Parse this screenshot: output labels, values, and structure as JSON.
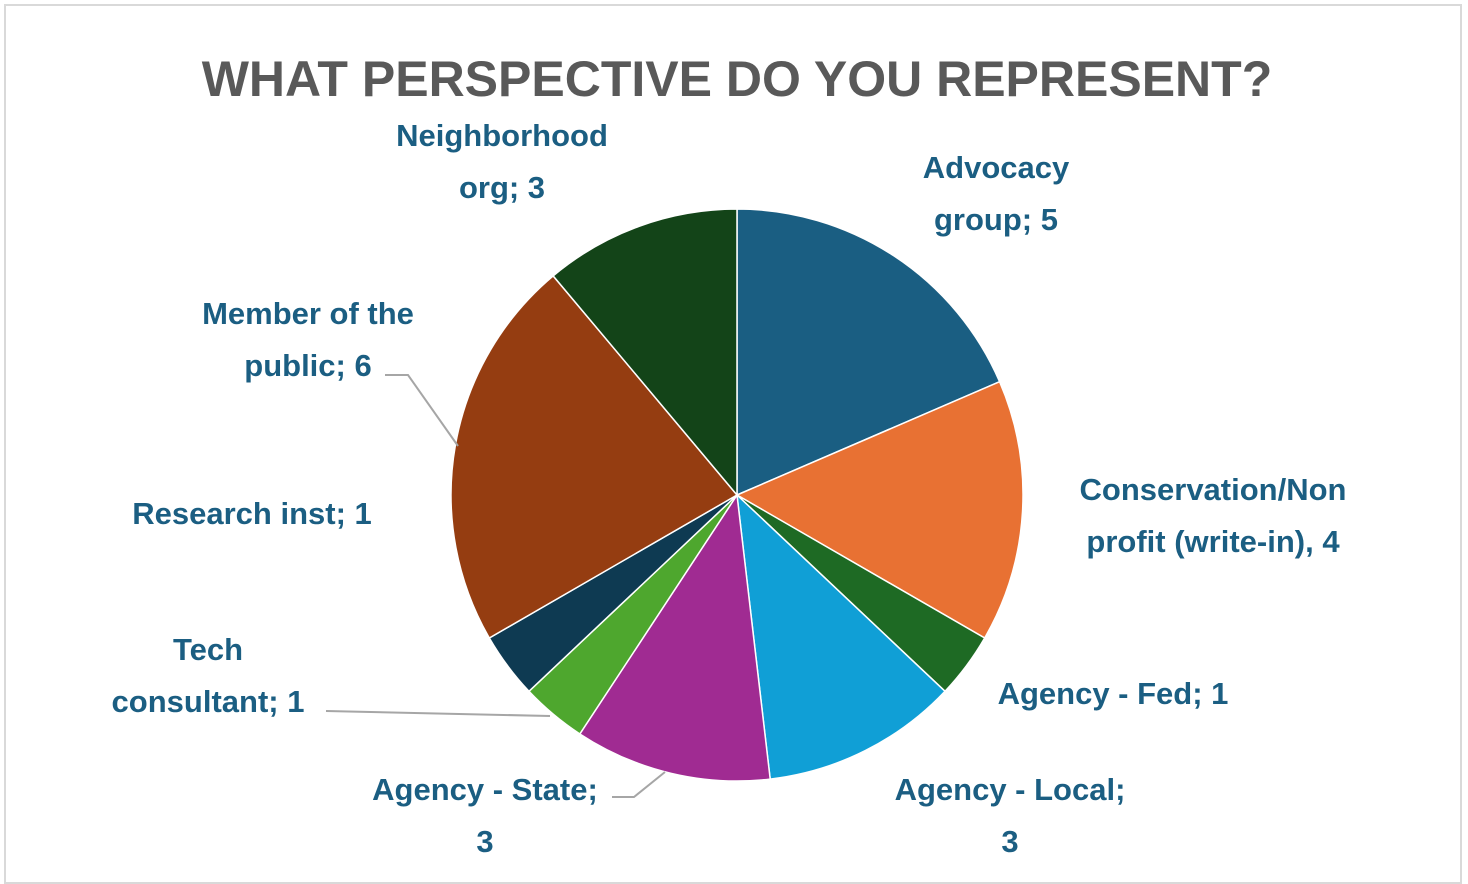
{
  "chart_data": {
    "type": "pie",
    "title": "WHAT PERSPECTIVE DO YOU REPRESENT?",
    "slices": [
      {
        "name": "Advocacy group",
        "value": 5,
        "color": "#1a5e82",
        "label_lines": [
          "Advocacy",
          "group; 5"
        ]
      },
      {
        "name": "Conservation/Non profit (write-in)",
        "value": 4,
        "color": "#e87133",
        "label_lines": [
          "Conservation/Non",
          "profit (write-in), 4"
        ]
      },
      {
        "name": "Agency - Fed",
        "value": 1,
        "color": "#1e6a24",
        "label_lines": [
          "Agency - Fed; 1"
        ]
      },
      {
        "name": "Agency - Local",
        "value": 3,
        "color": "#109fd6",
        "label_lines": [
          "Agency - Local;",
          "3"
        ]
      },
      {
        "name": "Agency - State",
        "value": 3,
        "color": "#a02b92",
        "label_lines": [
          "Agency - State;",
          "3"
        ]
      },
      {
        "name": "Tech consultant",
        "value": 1,
        "color": "#4ea72e",
        "label_lines": [
          "Tech",
          "consultant; 1"
        ]
      },
      {
        "name": "Research inst",
        "value": 1,
        "color": "#0e3a52",
        "label_lines": [
          "Research inst; 1"
        ]
      },
      {
        "name": "Member of the public",
        "value": 6,
        "color": "#953d11",
        "label_lines": [
          "Member of the",
          "public; 6"
        ]
      },
      {
        "name": "Neighborhood org",
        "value": 3,
        "color": "#134418",
        "label_lines": [
          "Neighborhood",
          "org; 3"
        ]
      }
    ],
    "legend": "none"
  }
}
